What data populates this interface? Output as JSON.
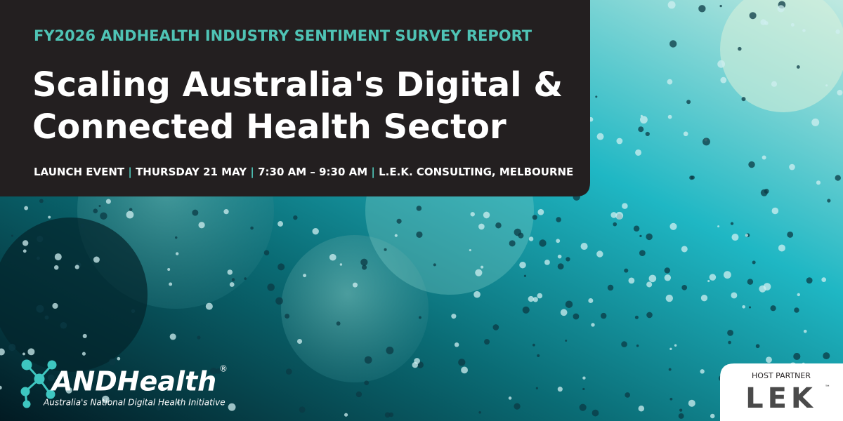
{
  "header": {
    "eyebrow": "FY2026 ANDHEALTH INDUSTRY SENTIMENT SURVEY REPORT",
    "title": [
      "Scaling Australia's Digital &",
      "Connected Health Sector"
    ],
    "details": [
      "LAUNCH EVENT",
      "THURSDAY 21 MAY",
      "7:30 AM – 9:30 AM",
      "L.E.K. CONSULTING, MELBOURNE"
    ]
  },
  "logo": {
    "name": "ANDHealth",
    "mark": "®",
    "tagline": "Australia's National Digital Health Initiative"
  },
  "partner": {
    "label": "HOST PARTNER",
    "name": "LEK",
    "mark": "™"
  }
}
